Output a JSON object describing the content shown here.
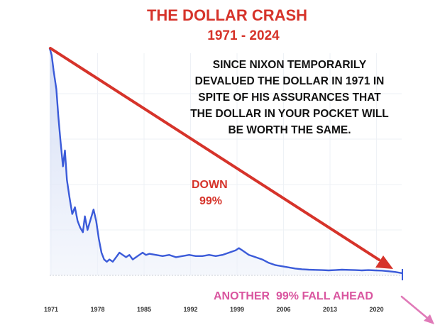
{
  "colors": {
    "title": "#d6332a",
    "subtitle": "#d6332a",
    "annotation": "#111111",
    "down": "#d6332a",
    "ahead": "#d9559f",
    "line": "#3b5bd9",
    "area": "#dfe6f7",
    "trend_arrow": "#d6332a",
    "future_arrow": "#e07ab8",
    "grid": "#eef1f6",
    "baseline": "#c9cdd6",
    "tick": "#333333",
    "end_marker": "#3b5bd9"
  },
  "chart_data": {
    "type": "line",
    "title": "THE DOLLAR CRASH",
    "subtitle": "1971 - 2024",
    "xlabel": "",
    "ylabel": "",
    "xlim": [
      1971,
      2024
    ],
    "ylim": [
      0,
      100
    ],
    "xticks": [
      1971,
      1978,
      1985,
      1992,
      1999,
      2006,
      2013,
      2020
    ],
    "grid": true,
    "legend": "none",
    "series": [
      {
        "x": [
          1971.0,
          1971.3,
          1971.6,
          1972.0,
          1972.3,
          1972.6,
          1973.0,
          1973.3,
          1973.6,
          1974.0,
          1974.4,
          1974.8,
          1975.2,
          1975.6,
          1976.0,
          1976.3,
          1976.7,
          1977.2,
          1977.6,
          1978.0,
          1978.4,
          1978.8,
          1979.2,
          1979.6,
          1980.0,
          1980.5,
          1981.0,
          1981.5,
          1982.0,
          1982.5,
          1983.0,
          1983.5,
          1984.0,
          1984.5,
          1985.0,
          1985.5,
          1986.0,
          1987.0,
          1988.0,
          1989.0,
          1990.0,
          1991.0,
          1992.0,
          1993.0,
          1994.0,
          1995.0,
          1996.0,
          1997.0,
          1998.0,
          1999.0,
          1999.5,
          2000.0,
          2000.5,
          2001.0,
          2001.5,
          2002.0,
          2003.0,
          2004.0,
          2005.0,
          2006.0,
          2007.0,
          2008.0,
          2009.0,
          2010.0,
          2011.0,
          2012.0,
          2013.0,
          2014.0,
          2015.0,
          2016.0,
          2017.0,
          2018.0,
          2019.0,
          2020.0,
          2021.0,
          2022.0,
          2023.0,
          2024.0
        ],
        "values": [
          100,
          97,
          90,
          82,
          70,
          60,
          48,
          55,
          42,
          34,
          27,
          30,
          24,
          21,
          19,
          26,
          20,
          25,
          29,
          24,
          16,
          10,
          7,
          6,
          7,
          6,
          8,
          10,
          9,
          8,
          9,
          7,
          8,
          9,
          10,
          9,
          9.5,
          9,
          8.5,
          9,
          8,
          8.5,
          9,
          8.5,
          8.5,
          9,
          8.5,
          9,
          10,
          11,
          12,
          11,
          10,
          9,
          8.5,
          8,
          7,
          5.5,
          4.5,
          4,
          3.5,
          3,
          2.7,
          2.5,
          2.4,
          2.3,
          2.2,
          2.3,
          2.5,
          2.4,
          2.3,
          2.2,
          2.3,
          2.2,
          2.1,
          1.8,
          1.5,
          1.0
        ]
      }
    ],
    "annotations": [
      "SINCE NIXON TEMPORARILY",
      "DEVALUED THE DOLLAR IN 1971 IN",
      "SPITE OF HIS ASSURANCES THAT",
      "THE DOLLAR IN YOUR POCKET WILL",
      "BE WORTH THE SAME."
    ],
    "down_label": [
      "DOWN",
      "99%"
    ],
    "ahead_label": "ANOTHER  99% FALL AHEAD"
  }
}
